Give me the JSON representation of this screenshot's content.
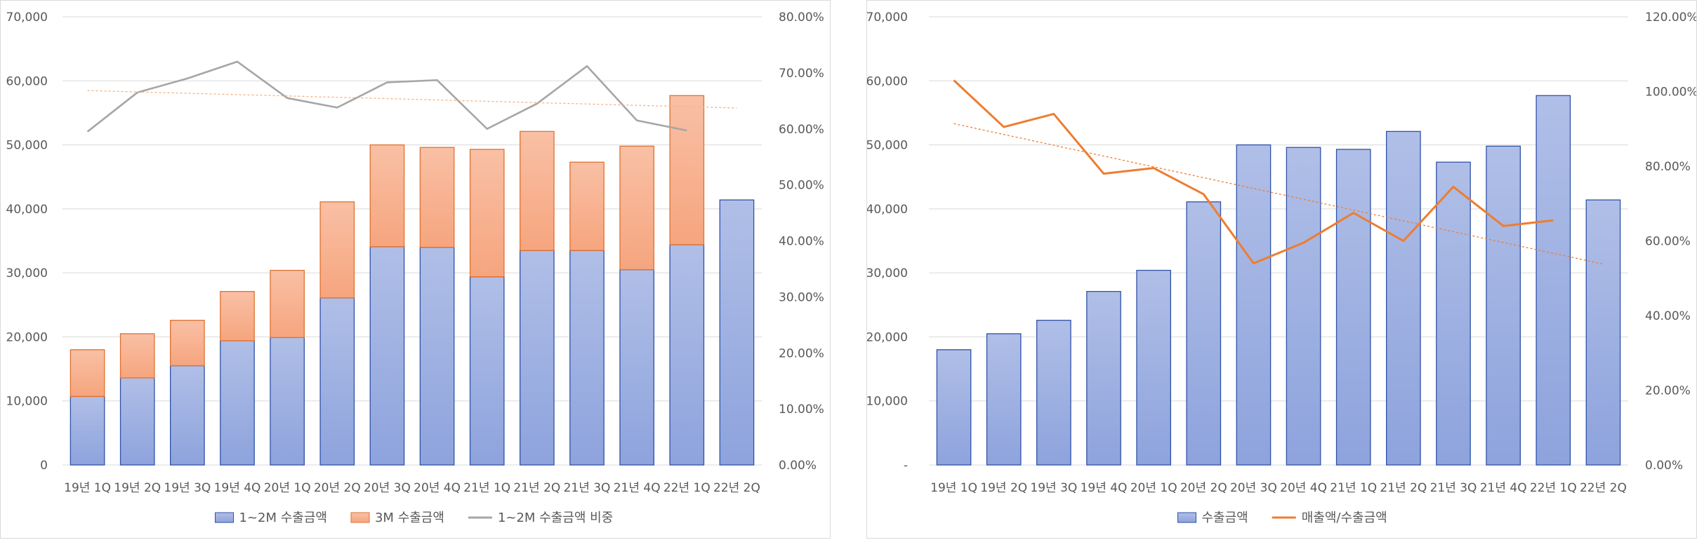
{
  "chart_data": [
    {
      "type": "bar",
      "stacked": true,
      "categories": [
        "19년 1Q",
        "19년 2Q",
        "19년 3Q",
        "19년 4Q",
        "20년 1Q",
        "20년 2Q",
        "20년 3Q",
        "20년 4Q",
        "21년 1Q",
        "21년 2Q",
        "21년 3Q",
        "21년 4Q",
        "22년 1Q",
        "22년 2Q"
      ],
      "yticks": [
        "0",
        "10,000",
        "20,000",
        "30,000",
        "40,000",
        "50,000",
        "60,000",
        "70,000"
      ],
      "y2ticks": [
        "0.00%",
        "10.00%",
        "20.00%",
        "30.00%",
        "40.00%",
        "50.00%",
        "60.00%",
        "70.00%",
        "80.00%"
      ],
      "ylim": [
        0,
        70000
      ],
      "y2lim": [
        0,
        0.8
      ],
      "series": [
        {
          "name": "1~2M 수출금액",
          "kind": "bar",
          "color": "#8ea3dd",
          "values": [
            10700,
            13600,
            15500,
            19400,
            19900,
            26100,
            34100,
            34000,
            29400,
            33500,
            33500,
            30500,
            34400,
            41400
          ]
        },
        {
          "name": "3M 수출금액",
          "kind": "bar",
          "color": "#f6a57e",
          "values": [
            7300,
            6900,
            7100,
            7700,
            10500,
            15000,
            15900,
            15600,
            19900,
            18600,
            13800,
            19300,
            23300,
            null
          ]
        },
        {
          "name": "1~2M 수출금액 비중",
          "kind": "line",
          "axis": "right",
          "color": "#a6a6a6",
          "values": [
            0.595,
            0.665,
            0.69,
            0.72,
            0.655,
            0.638,
            0.683,
            0.687,
            0.6,
            0.645,
            0.712,
            0.615,
            0.597,
            null
          ]
        }
      ],
      "trendline": {
        "of": "1~2M 수출금액 비중",
        "color": "#f4b183",
        "style": "dotted"
      },
      "legend": "bottom",
      "grid": true
    },
    {
      "type": "bar",
      "categories": [
        "19년 1Q",
        "19년 2Q",
        "19년 3Q",
        "19년 4Q",
        "20년 1Q",
        "20년 2Q",
        "20년 3Q",
        "20년 4Q",
        "21년 1Q",
        "21년 2Q",
        "21년 3Q",
        "21년 4Q",
        "22년 1Q",
        "22년 2Q"
      ],
      "yticks": [
        "-",
        "10,000",
        "20,000",
        "30,000",
        "40,000",
        "50,000",
        "60,000",
        "70,000"
      ],
      "y2ticks": [
        "0.00%",
        "20.00%",
        "40.00%",
        "60.00%",
        "80.00%",
        "100.00%",
        "120.00%"
      ],
      "ylim": [
        0,
        70000
      ],
      "y2lim": [
        0,
        1.2
      ],
      "series": [
        {
          "name": "수출금액",
          "kind": "bar",
          "color": "#8ea3dd",
          "values": [
            18000,
            20500,
            22600,
            27100,
            30400,
            41100,
            50000,
            49600,
            49300,
            52100,
            47300,
            49800,
            57700,
            41400
          ]
        },
        {
          "name": "매출액/수출금액",
          "kind": "line",
          "axis": "right",
          "color": "#ed7d31",
          "values": [
            1.03,
            0.905,
            0.94,
            0.78,
            0.795,
            0.725,
            0.54,
            0.595,
            0.675,
            0.6,
            0.745,
            0.64,
            0.655,
            null
          ]
        }
      ],
      "trendline": {
        "of": "매출액/수출금액",
        "color": "#ed7d31",
        "style": "dotted"
      },
      "legend": "bottom",
      "grid": true
    }
  ]
}
